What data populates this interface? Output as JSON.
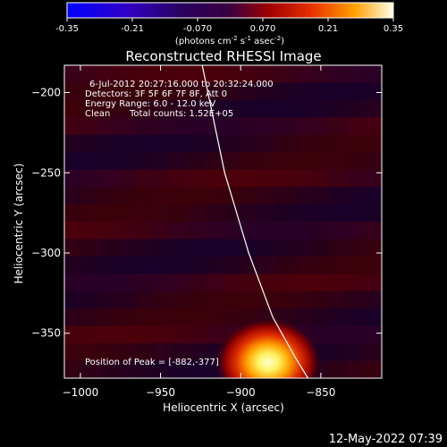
{
  "colorbar": {
    "tick_labels": [
      "-0.35",
      "-0.21",
      "-0.070",
      "0.070",
      "0.21",
      "0.35"
    ],
    "ticks": [
      -0.35,
      -0.21,
      -0.07,
      0.07,
      0.21,
      0.35
    ],
    "range": [
      -0.35,
      0.35
    ],
    "units_main": "(photons cm",
    "units_exp1": "-2",
    "units_mid": " s",
    "units_exp2": "-1",
    "units_end": " asec",
    "units_exp3": "-2",
    "units_close": ")"
  },
  "chart_data": {
    "type": "heatmap",
    "title": "Reconstructed RHESSI Image",
    "xlabel": "Heliocentric X (arcsec)",
    "ylabel": "Heliocentric Y (arcsec)",
    "xlim": [
      -1010,
      -812
    ],
    "ylim": [
      -378,
      -183
    ],
    "x_ticks": [
      -1000,
      -950,
      -900,
      -850
    ],
    "x_tick_labels": [
      "−1000",
      "−950",
      "−900",
      "−850"
    ],
    "y_ticks": [
      -200,
      -250,
      -300,
      -350
    ],
    "y_tick_labels": [
      "−200",
      "−250",
      "−300",
      "−350"
    ],
    "peak": [
      -882,
      -377
    ],
    "limb_points": [
      [
        -924,
        -183
      ],
      [
        -910,
        -250
      ],
      [
        -895,
        -300
      ],
      [
        -880,
        -340
      ],
      [
        -866,
        -365
      ],
      [
        -858,
        -378
      ]
    ],
    "annotations": {
      "time": "6-Jul-2012 20:27:16.000 to 20:32:24.000",
      "detectors": "Detectors: 3F 5F 6F 7F 8F, Att 0",
      "energy": "Energy Range: 6.0 - 12.0 keV",
      "clean": "Clean",
      "counts": "Total counts: 1.52E+05",
      "peak_label": "Position of Peak = [-882,-377]"
    }
  },
  "footer_timestamp": "12-May-2022 07:39",
  "colors": {
    "background": "#000000",
    "text": "#ffffff",
    "colormap": [
      "#0000ff",
      "#2000a0",
      "#300040",
      "#400050",
      "#800000",
      "#cc2000",
      "#ff6000",
      "#ffc000",
      "#ffffe0"
    ]
  }
}
